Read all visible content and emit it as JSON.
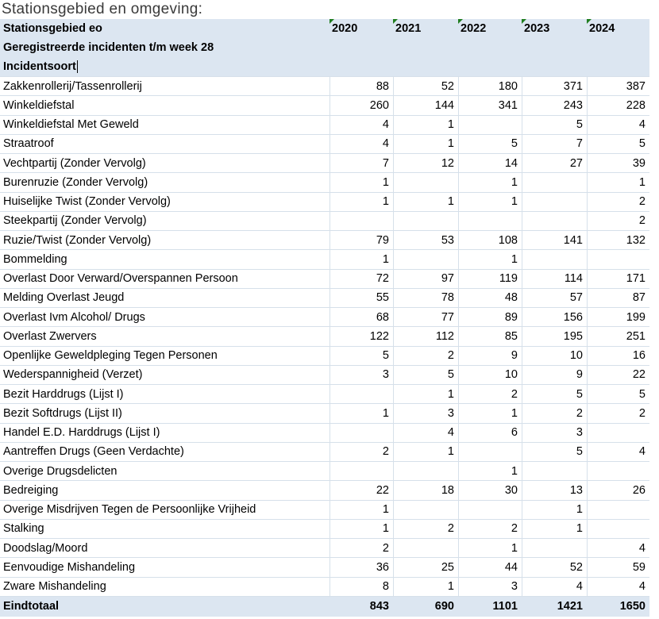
{
  "title": "Stationsgebied en omgeving:",
  "header": {
    "line1": "Stationsgebied eo",
    "line2": "Geregistreerde incidenten t/m week 28",
    "line3": "Incidentsoort",
    "years": [
      "2020",
      "2021",
      "2022",
      "2023",
      "2024"
    ]
  },
  "table": {
    "rows": [
      {
        "label": "Zakkenrollerij/Tassenrollerij",
        "values": [
          "88",
          "52",
          "180",
          "371",
          "387"
        ]
      },
      {
        "label": "Winkeldiefstal",
        "values": [
          "260",
          "144",
          "341",
          "243",
          "228"
        ]
      },
      {
        "label": "Winkeldiefstal Met Geweld",
        "values": [
          "4",
          "1",
          "",
          "5",
          "4"
        ]
      },
      {
        "label": "Straatroof",
        "values": [
          "4",
          "1",
          "5",
          "7",
          "5"
        ]
      },
      {
        "label": "Vechtpartij (Zonder Vervolg)",
        "values": [
          "7",
          "12",
          "14",
          "27",
          "39"
        ]
      },
      {
        "label": "Burenruzie (Zonder Vervolg)",
        "values": [
          "1",
          "",
          "1",
          "",
          "1"
        ]
      },
      {
        "label": "Huiselijke Twist (Zonder Vervolg)",
        "values": [
          "1",
          "1",
          "1",
          "",
          "2"
        ]
      },
      {
        "label": "Steekpartij (Zonder Vervolg)",
        "values": [
          "",
          "",
          "",
          "",
          "2"
        ]
      },
      {
        "label": "Ruzie/Twist (Zonder Vervolg)",
        "values": [
          "79",
          "53",
          "108",
          "141",
          "132"
        ]
      },
      {
        "label": "Bommelding",
        "values": [
          "1",
          "",
          "1",
          "",
          ""
        ]
      },
      {
        "label": "Overlast Door Verward/Overspannen Persoon",
        "values": [
          "72",
          "97",
          "119",
          "114",
          "171"
        ]
      },
      {
        "label": "Melding Overlast Jeugd",
        "values": [
          "55",
          "78",
          "48",
          "57",
          "87"
        ]
      },
      {
        "label": "Overlast Ivm Alcohol/ Drugs",
        "values": [
          "68",
          "77",
          "89",
          "156",
          "199"
        ]
      },
      {
        "label": "Overlast Zwervers",
        "values": [
          "122",
          "112",
          "85",
          "195",
          "251"
        ]
      },
      {
        "label": "Openlijke Geweldpleging Tegen Personen",
        "values": [
          "5",
          "2",
          "9",
          "10",
          "16"
        ]
      },
      {
        "label": "Wederspannigheid (Verzet)",
        "values": [
          "3",
          "5",
          "10",
          "9",
          "22"
        ]
      },
      {
        "label": "Bezit Harddrugs (Lijst I)",
        "values": [
          "",
          "1",
          "2",
          "5",
          "5"
        ]
      },
      {
        "label": "Bezit Softdrugs (Lijst II)",
        "values": [
          "1",
          "3",
          "1",
          "2",
          "2"
        ]
      },
      {
        "label": "Handel E.D. Harddrugs (Lijst I)",
        "values": [
          "",
          "4",
          "6",
          "3",
          ""
        ]
      },
      {
        "label": "Aantreffen Drugs (Geen Verdachte)",
        "values": [
          "2",
          "1",
          "",
          "5",
          "4"
        ]
      },
      {
        "label": "Overige Drugsdelicten",
        "values": [
          "",
          "",
          "1",
          "",
          ""
        ]
      },
      {
        "label": "Bedreiging",
        "values": [
          "22",
          "18",
          "30",
          "13",
          "26"
        ]
      },
      {
        "label": "Overige Misdrijven Tegen de Persoonlijke Vrijheid",
        "values": [
          "1",
          "",
          "",
          "1",
          ""
        ]
      },
      {
        "label": "Stalking",
        "values": [
          "1",
          "2",
          "2",
          "1",
          ""
        ]
      },
      {
        "label": "Doodslag/Moord",
        "values": [
          "2",
          "",
          "1",
          "",
          "4"
        ]
      },
      {
        "label": "Eenvoudige Mishandeling",
        "values": [
          "36",
          "25",
          "44",
          "52",
          "59"
        ]
      },
      {
        "label": "Zware Mishandeling",
        "values": [
          "8",
          "1",
          "3",
          "4",
          "4"
        ]
      }
    ],
    "total": {
      "label": "Eindtotaal",
      "values": [
        "843",
        "690",
        "1101",
        "1421",
        "1650"
      ]
    }
  },
  "colors": {
    "header_bg": "#dce6f1",
    "grid_border": "#d6e0ea",
    "error_indicator_green": "#1f7d1f",
    "text": "#000000",
    "title_text": "#3a3a3a"
  },
  "icons": {
    "error_indicator": "green-triangle",
    "text_cursor": "caret-bar"
  }
}
